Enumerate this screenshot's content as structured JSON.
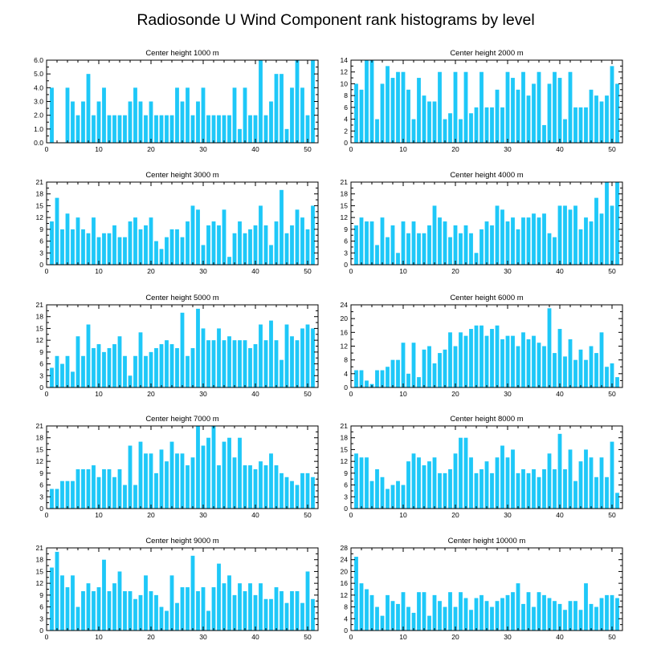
{
  "title": "Radiosonde U Wind Component rank histograms by level",
  "colors": {
    "bar": "#1ec8f8",
    "axis": "#000000",
    "background": "#ffffff"
  },
  "chart_data": [
    {
      "type": "bar",
      "title": "Center height 1000 m",
      "xlim": [
        0,
        52
      ],
      "ylim": [
        0,
        6
      ],
      "xticks": [
        0,
        10,
        20,
        30,
        40,
        50
      ],
      "yticks": [
        0,
        1,
        2,
        3,
        4,
        5,
        6
      ],
      "ytick_labels": [
        "0.0",
        "1.0",
        "2.0",
        "3.0",
        "4.0",
        "5.0",
        "6.0"
      ],
      "x": [
        1,
        2,
        3,
        4,
        5,
        6,
        7,
        8,
        9,
        10,
        11,
        12,
        13,
        14,
        15,
        16,
        17,
        18,
        19,
        20,
        21,
        22,
        23,
        24,
        25,
        26,
        27,
        28,
        29,
        30,
        31,
        32,
        33,
        34,
        35,
        36,
        37,
        38,
        39,
        40,
        41,
        42,
        43,
        44,
        45,
        46,
        47,
        48,
        49,
        50,
        51
      ],
      "values": [
        4,
        0,
        0,
        4,
        3,
        2,
        3,
        5,
        2,
        3,
        4,
        2,
        2,
        2,
        2,
        3,
        4,
        3,
        2,
        3,
        2,
        2,
        2,
        2,
        4,
        3,
        4,
        2,
        3,
        4,
        2,
        2,
        2,
        2,
        2,
        4,
        1,
        4,
        2,
        2,
        6,
        2,
        3,
        5,
        5,
        1,
        4,
        6,
        4,
        2,
        6
      ]
    },
    {
      "type": "bar",
      "title": "Center height 2000 m",
      "xlim": [
        0,
        52
      ],
      "ylim": [
        0,
        14
      ],
      "xticks": [
        0,
        10,
        20,
        30,
        40,
        50
      ],
      "yticks": [
        0,
        2,
        4,
        6,
        8,
        10,
        12,
        14
      ],
      "ytick_labels": [
        "0",
        "2",
        "4",
        "6",
        "8",
        "10",
        "12",
        "14"
      ],
      "x": [
        1,
        2,
        3,
        4,
        5,
        6,
        7,
        8,
        9,
        10,
        11,
        12,
        13,
        14,
        15,
        16,
        17,
        18,
        19,
        20,
        21,
        22,
        23,
        24,
        25,
        26,
        27,
        28,
        29,
        30,
        31,
        32,
        33,
        34,
        35,
        36,
        37,
        38,
        39,
        40,
        41,
        42,
        43,
        44,
        45,
        46,
        47,
        48,
        49,
        50,
        51
      ],
      "values": [
        10,
        9,
        14,
        14,
        4,
        10,
        13,
        11,
        12,
        12,
        9,
        4,
        11,
        8,
        7,
        7,
        12,
        4,
        5,
        12,
        4,
        12,
        5,
        6,
        12,
        6,
        6,
        9,
        6,
        12,
        11,
        9,
        12,
        8,
        10,
        12,
        3,
        10,
        12,
        11,
        4,
        12,
        6,
        6,
        6,
        9,
        8,
        7,
        8,
        13,
        10
      ]
    },
    {
      "type": "bar",
      "title": "Center height 3000 m",
      "xlim": [
        0,
        52
      ],
      "ylim": [
        0,
        21
      ],
      "xticks": [
        0,
        10,
        20,
        30,
        40,
        50
      ],
      "yticks": [
        0,
        3,
        6,
        9,
        12,
        15,
        18,
        21
      ],
      "ytick_labels": [
        "0",
        "3",
        "6",
        "9",
        "12",
        "15",
        "18",
        "21"
      ],
      "x": [
        1,
        2,
        3,
        4,
        5,
        6,
        7,
        8,
        9,
        10,
        11,
        12,
        13,
        14,
        15,
        16,
        17,
        18,
        19,
        20,
        21,
        22,
        23,
        24,
        25,
        26,
        27,
        28,
        29,
        30,
        31,
        32,
        33,
        34,
        35,
        36,
        37,
        38,
        39,
        40,
        41,
        42,
        43,
        44,
        45,
        46,
        47,
        48,
        49,
        50,
        51
      ],
      "values": [
        11,
        17,
        9,
        13,
        9,
        12,
        9,
        8,
        12,
        7,
        8,
        8,
        10,
        7,
        7,
        11,
        12,
        9,
        10,
        12,
        6,
        4,
        7,
        9,
        9,
        7,
        11,
        15,
        14,
        5,
        10,
        11,
        10,
        14,
        2,
        8,
        11,
        8,
        9,
        10,
        15,
        10,
        5,
        11,
        19,
        8,
        10,
        14,
        12,
        9,
        15
      ]
    },
    {
      "type": "bar",
      "title": "Center height 4000 m",
      "xlim": [
        0,
        52
      ],
      "ylim": [
        0,
        21
      ],
      "xticks": [
        0,
        10,
        20,
        30,
        40,
        50
      ],
      "yticks": [
        0,
        3,
        6,
        9,
        12,
        15,
        18,
        21
      ],
      "ytick_labels": [
        "0",
        "3",
        "6",
        "9",
        "12",
        "15",
        "18",
        "21"
      ],
      "x": [
        1,
        2,
        3,
        4,
        5,
        6,
        7,
        8,
        9,
        10,
        11,
        12,
        13,
        14,
        15,
        16,
        17,
        18,
        19,
        20,
        21,
        22,
        23,
        24,
        25,
        26,
        27,
        28,
        29,
        30,
        31,
        32,
        33,
        34,
        35,
        36,
        37,
        38,
        39,
        40,
        41,
        42,
        43,
        44,
        45,
        46,
        47,
        48,
        49,
        50,
        51
      ],
      "values": [
        10,
        12,
        11,
        11,
        5,
        12,
        7,
        10,
        3,
        11,
        8,
        11,
        8,
        8,
        10,
        15,
        12,
        11,
        7,
        10,
        8,
        10,
        8,
        3,
        9,
        11,
        10,
        15,
        14,
        11,
        12,
        9,
        12,
        12,
        13,
        12,
        13,
        8,
        7,
        15,
        15,
        14,
        15,
        9,
        12,
        11,
        17,
        13,
        21,
        15,
        21
      ]
    },
    {
      "type": "bar",
      "title": "Center height 5000 m",
      "xlim": [
        0,
        52
      ],
      "ylim": [
        0,
        21
      ],
      "xticks": [
        0,
        10,
        20,
        30,
        40,
        50
      ],
      "yticks": [
        0,
        3,
        6,
        9,
        12,
        15,
        18,
        21
      ],
      "ytick_labels": [
        "0",
        "3",
        "6",
        "9",
        "12",
        "15",
        "18",
        "21"
      ],
      "x": [
        1,
        2,
        3,
        4,
        5,
        6,
        7,
        8,
        9,
        10,
        11,
        12,
        13,
        14,
        15,
        16,
        17,
        18,
        19,
        20,
        21,
        22,
        23,
        24,
        25,
        26,
        27,
        28,
        29,
        30,
        31,
        32,
        33,
        34,
        35,
        36,
        37,
        38,
        39,
        40,
        41,
        42,
        43,
        44,
        45,
        46,
        47,
        48,
        49,
        50,
        51
      ],
      "values": [
        5,
        8,
        6,
        8,
        4,
        13,
        8,
        16,
        10,
        11,
        9,
        10,
        11,
        13,
        8,
        3,
        8,
        14,
        8,
        9,
        10,
        11,
        12,
        11,
        10,
        19,
        8,
        10,
        20,
        15,
        12,
        12,
        15,
        12,
        13,
        12,
        12,
        12,
        10,
        11,
        16,
        12,
        17,
        12,
        7,
        16,
        13,
        12,
        15,
        16,
        15
      ]
    },
    {
      "type": "bar",
      "title": "Center height 6000 m",
      "xlim": [
        0,
        52
      ],
      "ylim": [
        0,
        24
      ],
      "xticks": [
        0,
        10,
        20,
        30,
        40,
        50
      ],
      "yticks": [
        0,
        4,
        8,
        12,
        16,
        20,
        24
      ],
      "ytick_labels": [
        "0",
        "4",
        "8",
        "12",
        "16",
        "20",
        "24"
      ],
      "x": [
        1,
        2,
        3,
        4,
        5,
        6,
        7,
        8,
        9,
        10,
        11,
        12,
        13,
        14,
        15,
        16,
        17,
        18,
        19,
        20,
        21,
        22,
        23,
        24,
        25,
        26,
        27,
        28,
        29,
        30,
        31,
        32,
        33,
        34,
        35,
        36,
        37,
        38,
        39,
        40,
        41,
        42,
        43,
        44,
        45,
        46,
        47,
        48,
        49,
        50,
        51
      ],
      "values": [
        5,
        5,
        2,
        1,
        5,
        5,
        6,
        8,
        8,
        13,
        4,
        13,
        3,
        11,
        12,
        7,
        10,
        11,
        16,
        12,
        16,
        15,
        17,
        18,
        18,
        15,
        17,
        18,
        14,
        15,
        15,
        12,
        16,
        14,
        15,
        13,
        12,
        23,
        10,
        17,
        9,
        14,
        8,
        11,
        8,
        12,
        10,
        16,
        6,
        7,
        3
      ]
    },
    {
      "type": "bar",
      "title": "Center height 7000 m",
      "xlim": [
        0,
        52
      ],
      "ylim": [
        0,
        21
      ],
      "xticks": [
        0,
        10,
        20,
        30,
        40,
        50
      ],
      "yticks": [
        0,
        3,
        6,
        9,
        12,
        15,
        18,
        21
      ],
      "ytick_labels": [
        "0",
        "3",
        "6",
        "9",
        "12",
        "15",
        "18",
        "21"
      ],
      "x": [
        1,
        2,
        3,
        4,
        5,
        6,
        7,
        8,
        9,
        10,
        11,
        12,
        13,
        14,
        15,
        16,
        17,
        18,
        19,
        20,
        21,
        22,
        23,
        24,
        25,
        26,
        27,
        28,
        29,
        30,
        31,
        32,
        33,
        34,
        35,
        36,
        37,
        38,
        39,
        40,
        41,
        42,
        43,
        44,
        45,
        46,
        47,
        48,
        49,
        50,
        51
      ],
      "values": [
        5,
        5,
        7,
        7,
        7,
        10,
        10,
        10,
        11,
        8,
        10,
        10,
        8,
        10,
        6,
        16,
        6,
        17,
        14,
        14,
        9,
        15,
        12,
        17,
        14,
        14,
        11,
        13,
        21,
        16,
        18,
        21,
        11,
        17,
        18,
        13,
        18,
        11,
        11,
        10,
        12,
        11,
        14,
        11,
        9,
        8,
        7,
        6,
        9,
        9,
        8
      ]
    },
    {
      "type": "bar",
      "title": "Center height 8000 m",
      "xlim": [
        0,
        52
      ],
      "ylim": [
        0,
        21
      ],
      "xticks": [
        0,
        10,
        20,
        30,
        40,
        50
      ],
      "yticks": [
        0,
        3,
        6,
        9,
        12,
        15,
        18,
        21
      ],
      "ytick_labels": [
        "0",
        "3",
        "6",
        "9",
        "12",
        "15",
        "18",
        "21"
      ],
      "x": [
        1,
        2,
        3,
        4,
        5,
        6,
        7,
        8,
        9,
        10,
        11,
        12,
        13,
        14,
        15,
        16,
        17,
        18,
        19,
        20,
        21,
        22,
        23,
        24,
        25,
        26,
        27,
        28,
        29,
        30,
        31,
        32,
        33,
        34,
        35,
        36,
        37,
        38,
        39,
        40,
        41,
        42,
        43,
        44,
        45,
        46,
        47,
        48,
        49,
        50,
        51
      ],
      "values": [
        14,
        13,
        13,
        7,
        10,
        8,
        5,
        6,
        7,
        6,
        12,
        14,
        13,
        11,
        12,
        13,
        9,
        9,
        10,
        14,
        18,
        18,
        13,
        9,
        10,
        12,
        9,
        13,
        16,
        13,
        15,
        9,
        10,
        9,
        10,
        8,
        10,
        14,
        10,
        19,
        10,
        15,
        7,
        12,
        15,
        13,
        8,
        13,
        8,
        17,
        4
      ]
    },
    {
      "type": "bar",
      "title": "Center height 9000 m",
      "xlim": [
        0,
        52
      ],
      "ylim": [
        0,
        21
      ],
      "xticks": [
        0,
        10,
        20,
        30,
        40,
        50
      ],
      "yticks": [
        0,
        3,
        6,
        9,
        12,
        15,
        18,
        21
      ],
      "ytick_labels": [
        "0",
        "3",
        "6",
        "9",
        "12",
        "15",
        "18",
        "21"
      ],
      "x": [
        1,
        2,
        3,
        4,
        5,
        6,
        7,
        8,
        9,
        10,
        11,
        12,
        13,
        14,
        15,
        16,
        17,
        18,
        19,
        20,
        21,
        22,
        23,
        24,
        25,
        26,
        27,
        28,
        29,
        30,
        31,
        32,
        33,
        34,
        35,
        36,
        37,
        38,
        39,
        40,
        41,
        42,
        43,
        44,
        45,
        46,
        47,
        48,
        49,
        50,
        51
      ],
      "values": [
        16,
        20,
        14,
        11,
        14,
        6,
        10,
        12,
        10,
        11,
        18,
        10,
        12,
        15,
        10,
        10,
        8,
        9,
        14,
        10,
        9,
        6,
        5,
        14,
        7,
        11,
        11,
        19,
        10,
        11,
        5,
        11,
        17,
        12,
        14,
        9,
        12,
        10,
        12,
        9,
        12,
        8,
        8,
        11,
        10,
        7,
        10,
        10,
        7,
        15,
        8
      ]
    },
    {
      "type": "bar",
      "title": "Center height 10000 m",
      "xlim": [
        0,
        52
      ],
      "ylim": [
        0,
        28
      ],
      "xticks": [
        0,
        10,
        20,
        30,
        40,
        50
      ],
      "yticks": [
        0,
        4,
        8,
        12,
        16,
        20,
        24,
        28
      ],
      "ytick_labels": [
        "0",
        "4",
        "8",
        "12",
        "16",
        "20",
        "24",
        "28"
      ],
      "x": [
        1,
        2,
        3,
        4,
        5,
        6,
        7,
        8,
        9,
        10,
        11,
        12,
        13,
        14,
        15,
        16,
        17,
        18,
        19,
        20,
        21,
        22,
        23,
        24,
        25,
        26,
        27,
        28,
        29,
        30,
        31,
        32,
        33,
        34,
        35,
        36,
        37,
        38,
        39,
        40,
        41,
        42,
        43,
        44,
        45,
        46,
        47,
        48,
        49,
        50,
        51
      ],
      "values": [
        25,
        16,
        14,
        12,
        8,
        5,
        12,
        10,
        9,
        13,
        8,
        6,
        13,
        13,
        5,
        12,
        10,
        8,
        13,
        8,
        13,
        11,
        7,
        11,
        12,
        10,
        8,
        10,
        11,
        12,
        13,
        16,
        9,
        13,
        8,
        13,
        12,
        11,
        10,
        9,
        7,
        10,
        10,
        7,
        16,
        9,
        8,
        11,
        12,
        12,
        11
      ]
    }
  ]
}
